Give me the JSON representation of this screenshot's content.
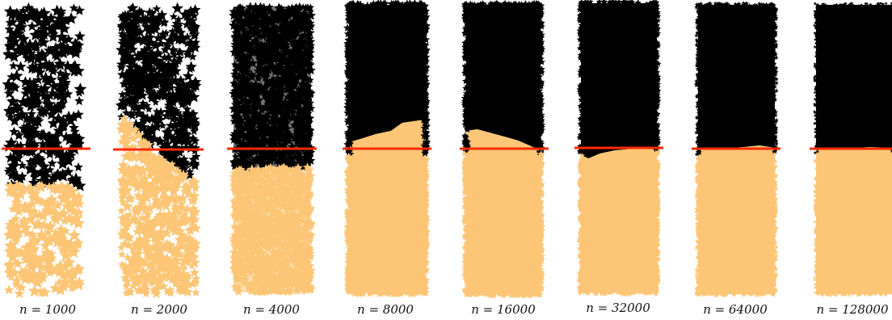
{
  "figure": {
    "panels": [
      {
        "label": "n = 1000",
        "n": 1000
      },
      {
        "label": "n = 2000",
        "n": 2000
      },
      {
        "label": "n = 4000",
        "n": 4000
      },
      {
        "label": "n = 8000",
        "n": 8000
      },
      {
        "label": "n = 16000",
        "n": 16000
      },
      {
        "label": "n = 32000",
        "n": 32000
      },
      {
        "label": "n = 64000",
        "n": 64000
      },
      {
        "label": "n = 128000",
        "n": 128000
      }
    ],
    "colors": {
      "dark_cluster": "#000000",
      "light_cluster": "#fcc676",
      "threshold_line": "#ff2a00"
    }
  }
}
